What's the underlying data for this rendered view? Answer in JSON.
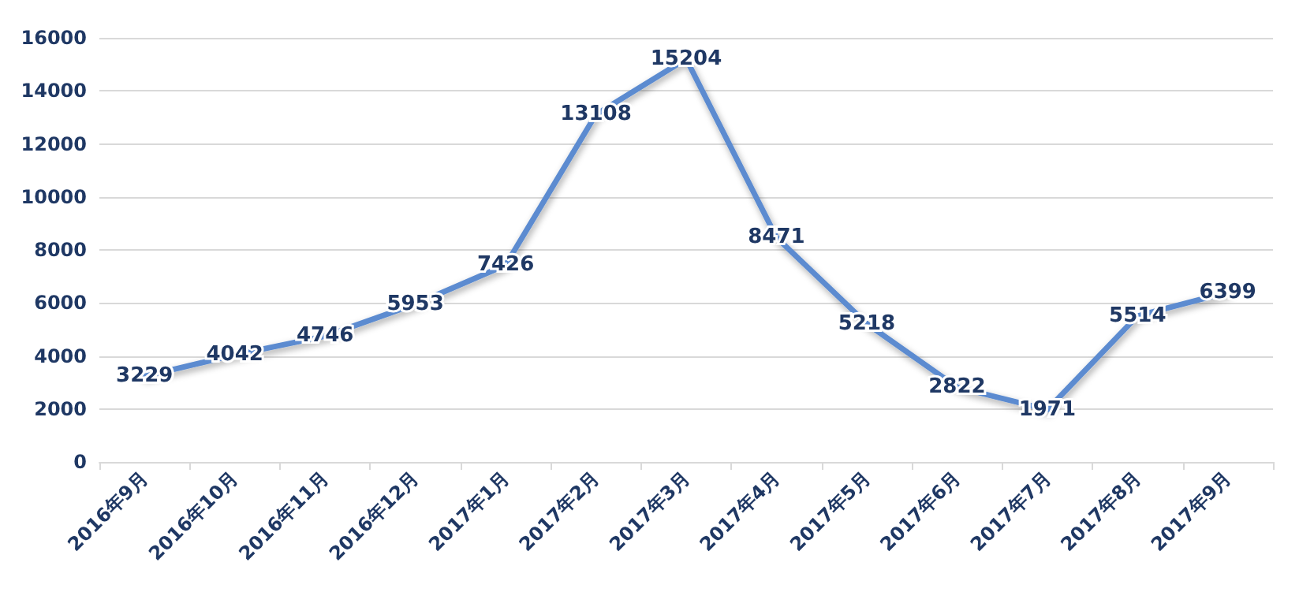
{
  "chart_data": {
    "type": "line",
    "categories": [
      "2016年9月",
      "2016年10月",
      "2016年11月",
      "2016年12月",
      "2017年1月",
      "2017年2月",
      "2017年3月",
      "2017年4月",
      "2017年5月",
      "2017年6月",
      "2017年7月",
      "2017年8月",
      "2017年9月"
    ],
    "series": [
      {
        "color": "#5b8bd0",
        "values": [
          3229,
          4042,
          4746,
          5953,
          7426,
          13108,
          15204,
          8471,
          5218,
          2822,
          1971,
          5514,
          6399
        ]
      }
    ],
    "ylim": [
      0,
      16000
    ],
    "yticks": [
      0,
      2000,
      4000,
      6000,
      8000,
      10000,
      12000,
      14000,
      16000
    ],
    "grid": "y",
    "data_labels": true,
    "marker": "none",
    "line_style": "solid"
  }
}
